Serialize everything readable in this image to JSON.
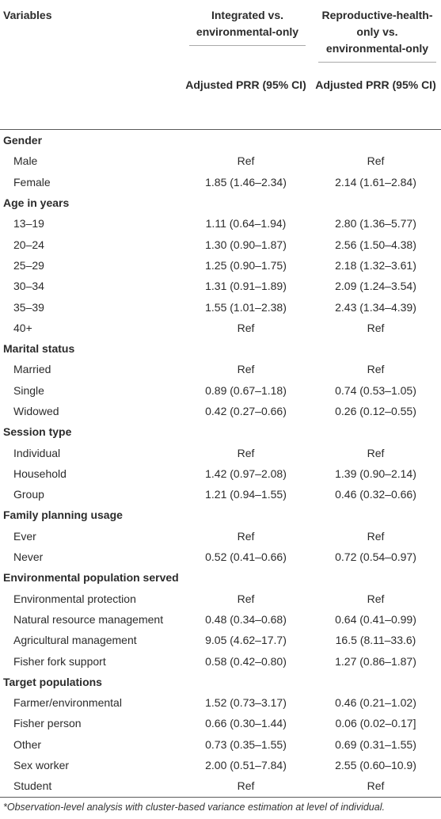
{
  "header": {
    "variables": "Variables",
    "group1": "Integrated vs. environmental-only",
    "group2": "Reproductive-health-only vs. environmental-only",
    "sub1": "Adjusted PRR (95% CI)",
    "sub2": "Adjusted PRR (95% CI)"
  },
  "sections": [
    {
      "title": "Gender",
      "rows": [
        {
          "label": "Male",
          "v1": "Ref",
          "v2": "Ref"
        },
        {
          "label": "Female",
          "v1": "1.85 (1.46–2.34)",
          "v2": "2.14 (1.61–2.84)"
        }
      ]
    },
    {
      "title": "Age in years",
      "rows": [
        {
          "label": "13–19",
          "v1": "1.11 (0.64–1.94)",
          "v2": "2.80 (1.36–5.77)"
        },
        {
          "label": "20–24",
          "v1": "1.30 (0.90–1.87)",
          "v2": "2.56 (1.50–4.38)"
        },
        {
          "label": "25–29",
          "v1": "1.25 (0.90–1.75)",
          "v2": "2.18 (1.32–3.61)"
        },
        {
          "label": "30–34",
          "v1": "1.31 (0.91–1.89)",
          "v2": "2.09 (1.24–3.54)"
        },
        {
          "label": "35–39",
          "v1": "1.55 (1.01–2.38)",
          "v2": "2.43 (1.34–4.39)"
        },
        {
          "label": "40+",
          "v1": "Ref",
          "v2": "Ref"
        }
      ]
    },
    {
      "title": "Marital status",
      "rows": [
        {
          "label": "Married",
          "v1": "Ref",
          "v2": "Ref"
        },
        {
          "label": "Single",
          "v1": "0.89 (0.67–1.18)",
          "v2": "0.74 (0.53–1.05)"
        },
        {
          "label": "Widowed",
          "v1": "0.42 (0.27–0.66)",
          "v2": "0.26 (0.12–0.55)"
        }
      ]
    },
    {
      "title": "Session type",
      "rows": [
        {
          "label": "Individual",
          "v1": "Ref",
          "v2": "Ref"
        },
        {
          "label": "Household",
          "v1": "1.42 (0.97–2.08)",
          "v2": "1.39 (0.90–2.14)"
        },
        {
          "label": "Group",
          "v1": "1.21 (0.94–1.55)",
          "v2": "0.46 (0.32–0.66)"
        }
      ]
    },
    {
      "title": "Family planning usage",
      "rows": [
        {
          "label": "Ever",
          "v1": "Ref",
          "v2": "Ref"
        },
        {
          "label": "Never",
          "v1": "0.52 (0.41–0.66)",
          "v2": "0.72 (0.54–0.97)"
        }
      ]
    },
    {
      "title": "Environmental population served",
      "rows": [
        {
          "label": "Environmental protection",
          "v1": "Ref",
          "v2": "Ref"
        },
        {
          "label": "Natural resource management",
          "v1": "0.48 (0.34–0.68)",
          "v2": "0.64 (0.41–0.99)"
        },
        {
          "label": "Agricultural management",
          "v1": "9.05 (4.62–17.7)",
          "v2": "16.5 (8.11–33.6)"
        },
        {
          "label": "Fisher fork support",
          "v1": "0.58 (0.42–0.80)",
          "v2": "1.27 (0.86–1.87)"
        }
      ]
    },
    {
      "title": "Target populations",
      "rows": [
        {
          "label": "Farmer/environmental",
          "v1": "1.52 (0.73–3.17)",
          "v2": "0.46 (0.21–1.02)"
        },
        {
          "label": "Fisher person",
          "v1": "0.66 (0.30–1.44)",
          "v2": "0.06 (0.02–0.17]"
        },
        {
          "label": "Other",
          "v1": "0.73 (0.35–1.55)",
          "v2": "0.69 (0.31–1.55)"
        },
        {
          "label": "Sex worker",
          "v1": "2.00 (0.51–7.84)",
          "v2": "2.55 (0.60–10.9)"
        },
        {
          "label": "Student",
          "v1": "Ref",
          "v2": "Ref"
        }
      ]
    }
  ],
  "footnote": "*Observation-level analysis with cluster-based variance estimation at level of individual."
}
